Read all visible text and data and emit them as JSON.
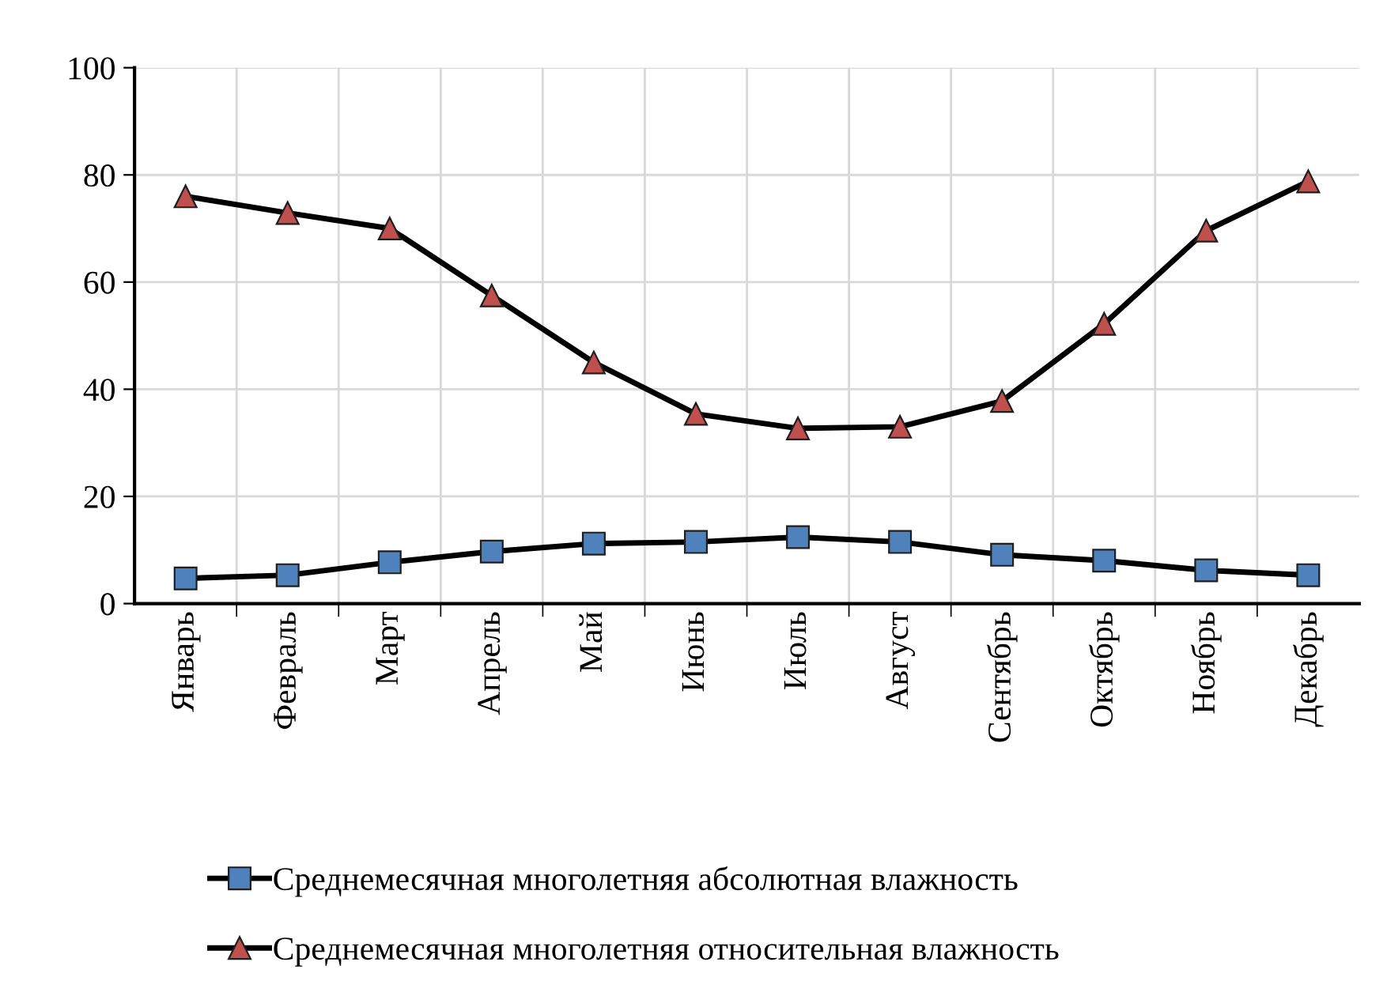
{
  "chart_data": {
    "type": "line",
    "categories": [
      "Январь",
      "Февраль",
      "Март",
      "Апрель",
      "Май",
      "Июнь",
      "Июль",
      "Август",
      "Сентябрь",
      "Октябрь",
      "Ноябрь",
      "Декабрь"
    ],
    "series": [
      {
        "name": "Среднемесячная многолетняя абсолютная влажность",
        "color": "#4f81bd",
        "marker": "square",
        "values": [
          4.7,
          5.3,
          7.7,
          9.7,
          11.2,
          11.5,
          12.4,
          11.5,
          9.1,
          8.0,
          6.2,
          5.3
        ]
      },
      {
        "name": "Среднемесячная многолетняя относительная влажность",
        "color": "#c0504d",
        "marker": "triangle",
        "values": [
          76,
          72.9,
          70,
          57.5,
          45,
          35.4,
          32.7,
          33,
          37.8,
          52.2,
          69.6,
          78.8
        ]
      }
    ],
    "ylim": [
      0,
      100
    ],
    "yticks": [
      0,
      20,
      40,
      60,
      80,
      100
    ],
    "grid": true,
    "legend": "bottom",
    "line_style": "solid"
  }
}
